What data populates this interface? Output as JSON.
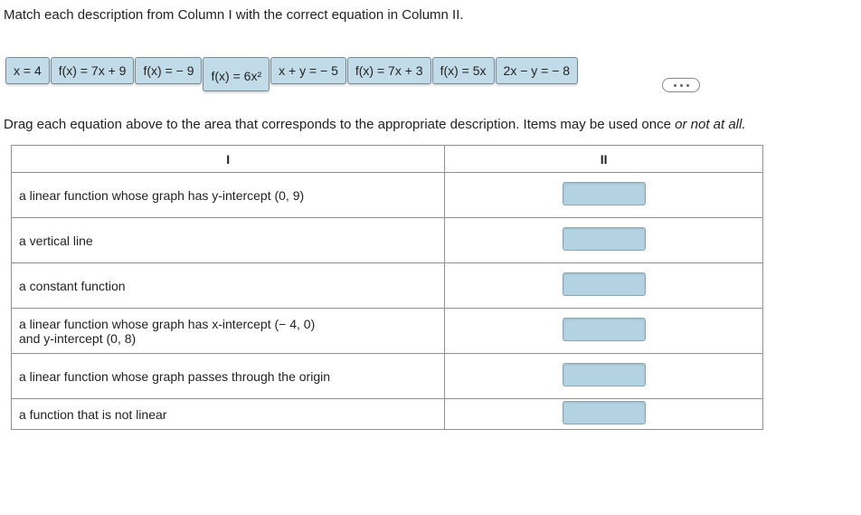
{
  "prompt": "Match each description from Column I with the correct equation in Column II.",
  "tiles": {
    "t1": "x = 4",
    "t2": "f(x) = 7x + 9",
    "t3": "f(x) = − 9",
    "t4": "f(x) = 6x²",
    "t5": "x + y = − 5",
    "t6": "f(x) = 7x + 3",
    "t7": "f(x) = 5x",
    "t8": "2x − y = − 8"
  },
  "instruction_main": "Drag each equation above to the area that corresponds to the appropriate description. Items may be used once ",
  "instruction_ital": "or not at all.",
  "headers": {
    "col1": "I",
    "col2": "II"
  },
  "rows": {
    "r1": "a linear function whose graph has y-intercept (0, 9)",
    "r2": "a vertical line",
    "r3": "a constant function",
    "r4a": "a linear function whose graph has x-intercept (− 4, 0)",
    "r4b": "and y-intercept (0, 8)",
    "r5": "a linear function whose graph passes through the origin",
    "r6": "a function that is not linear"
  },
  "colors": {
    "tile_bg": "#c2dbe8",
    "tile_border": "#7a8a94",
    "drop_bg": "#b3d3e3",
    "table_border": "#909090",
    "text": "#222222"
  }
}
